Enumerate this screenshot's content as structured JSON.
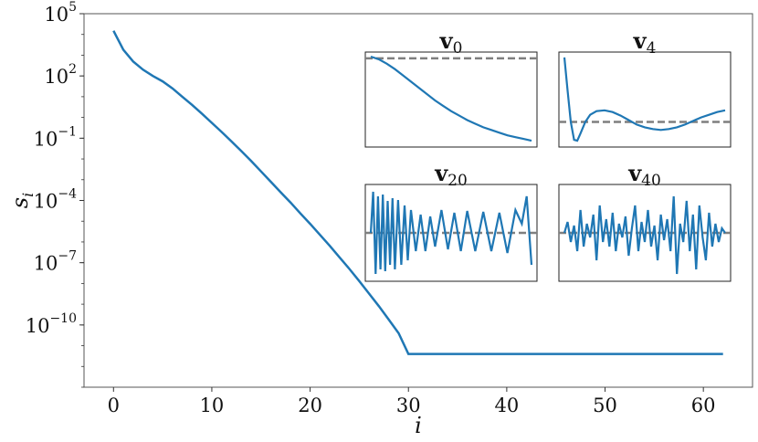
{
  "chart_data": {
    "type": "line",
    "xlabel": "i",
    "ylabel": "s_i",
    "y_scale": "log",
    "xlim": [
      -3,
      65
    ],
    "ylim": [
      1e-13,
      100000
    ],
    "x_ticks": [
      0,
      10,
      20,
      30,
      40,
      50,
      60
    ],
    "y_ticks": [
      {
        "value": 100000,
        "base": "10",
        "exp": "5"
      },
      {
        "value": 100,
        "base": "10",
        "exp": "2"
      },
      {
        "value": 0.1,
        "base": "10",
        "exp": "−1"
      },
      {
        "value": 0.0001,
        "base": "10",
        "exp": "−4"
      },
      {
        "value": 1e-07,
        "base": "10",
        "exp": "−7"
      },
      {
        "value": 1e-10,
        "base": "10",
        "exp": "−10"
      }
    ],
    "color": "#1f77b4",
    "grid": false,
    "series": [
      {
        "x": [
          0,
          1,
          2,
          3,
          4,
          5,
          6,
          7,
          8,
          9,
          10,
          11,
          12,
          13,
          14,
          15,
          16,
          17,
          18,
          19,
          20,
          21,
          22,
          23,
          24,
          25,
          26,
          27,
          28,
          29,
          30,
          31,
          32,
          33,
          34,
          35,
          36,
          37,
          38,
          39,
          40,
          41,
          42,
          43,
          44,
          45,
          46,
          47,
          48,
          49,
          50,
          51,
          52,
          53,
          54,
          55,
          56,
          57,
          58,
          59,
          60,
          61,
          62
        ],
        "y": [
          15000,
          1800,
          500,
          200,
          100,
          55,
          25,
          10,
          4,
          1.5,
          0.55,
          0.2,
          0.07,
          0.024,
          0.008,
          0.0025,
          0.0008,
          0.00025,
          8e-05,
          2.4e-05,
          7.5e-06,
          2.2e-06,
          6.5e-07,
          1.8e-07,
          5e-08,
          1.3e-08,
          3.2e-09,
          8e-10,
          1.8e-10,
          4e-11,
          4e-12,
          4e-12,
          4e-12,
          4e-12,
          4e-12,
          4e-12,
          4e-12,
          4e-12,
          4e-12,
          4e-12,
          4e-12,
          4e-12,
          4e-12,
          4e-12,
          4e-12,
          4e-12,
          4e-12,
          4e-12,
          4e-12,
          4e-12,
          4e-12,
          4e-12,
          4e-12,
          4e-12,
          4e-12,
          4e-12,
          4e-12,
          4e-12,
          4e-12,
          4e-12,
          4e-12,
          4e-12,
          4e-12
        ]
      }
    ],
    "insets": [
      {
        "title_base": "v",
        "title_sub": "0",
        "reference": "constant",
        "x": [
          0,
          0.05,
          0.1,
          0.15,
          0.2,
          0.25,
          0.3,
          0.35,
          0.4,
          0.45,
          0.5,
          0.55,
          0.6,
          0.65,
          0.7,
          0.75,
          0.8,
          0.85,
          0.9,
          0.95,
          1
        ],
        "y": [
          0.98,
          0.95,
          0.9,
          0.84,
          0.77,
          0.7,
          0.63,
          0.56,
          0.49,
          0.43,
          0.37,
          0.32,
          0.27,
          0.23,
          0.19,
          0.16,
          0.13,
          0.1,
          0.08,
          0.06,
          0.04
        ]
      },
      {
        "title_base": "v",
        "title_sub": "4",
        "reference": "constant",
        "x": [
          0,
          0.02,
          0.04,
          0.06,
          0.08,
          0.1,
          0.13,
          0.16,
          0.2,
          0.25,
          0.3,
          0.35,
          0.4,
          0.45,
          0.5,
          0.55,
          0.6,
          0.65,
          0.7,
          0.75,
          0.8,
          0.85,
          0.9,
          0.95,
          1
        ],
        "y": [
          0.97,
          0.6,
          0.25,
          0.05,
          0.04,
          0.12,
          0.25,
          0.33,
          0.37,
          0.38,
          0.36,
          0.32,
          0.27,
          0.22,
          0.19,
          0.17,
          0.16,
          0.17,
          0.19,
          0.22,
          0.26,
          0.3,
          0.33,
          0.36,
          0.38
        ]
      },
      {
        "title_base": "v",
        "title_sub": "20",
        "reference": "constant",
        "x": [
          0,
          0.015,
          0.03,
          0.045,
          0.06,
          0.075,
          0.09,
          0.105,
          0.12,
          0.135,
          0.15,
          0.17,
          0.19,
          0.21,
          0.23,
          0.25,
          0.28,
          0.31,
          0.34,
          0.37,
          0.4,
          0.44,
          0.48,
          0.52,
          0.56,
          0.6,
          0.65,
          0.7,
          0.75,
          0.8,
          0.85,
          0.9,
          0.94,
          0.97,
          1
        ],
        "y": [
          0.5,
          0.95,
          0.05,
          0.9,
          0.1,
          0.92,
          0.08,
          0.85,
          0.15,
          0.88,
          0.1,
          0.86,
          0.15,
          0.8,
          0.2,
          0.75,
          0.3,
          0.7,
          0.3,
          0.68,
          0.35,
          0.75,
          0.32,
          0.72,
          0.3,
          0.74,
          0.3,
          0.73,
          0.3,
          0.72,
          0.28,
          0.75,
          0.6,
          0.9,
          0.15
        ]
      },
      {
        "title_base": "v",
        "title_sub": "40",
        "reference": "constant",
        "x": [
          0,
          0.02,
          0.04,
          0.06,
          0.08,
          0.1,
          0.12,
          0.14,
          0.16,
          0.18,
          0.2,
          0.22,
          0.24,
          0.26,
          0.28,
          0.3,
          0.32,
          0.34,
          0.36,
          0.38,
          0.4,
          0.42,
          0.44,
          0.46,
          0.48,
          0.5,
          0.52,
          0.54,
          0.56,
          0.58,
          0.6,
          0.62,
          0.64,
          0.66,
          0.68,
          0.7,
          0.72,
          0.74,
          0.76,
          0.78,
          0.8,
          0.82,
          0.84,
          0.86,
          0.88,
          0.9,
          0.92,
          0.94,
          0.96,
          0.98,
          1
        ],
        "y": [
          0.5,
          0.62,
          0.4,
          0.58,
          0.3,
          0.75,
          0.35,
          0.6,
          0.45,
          0.7,
          0.2,
          0.8,
          0.4,
          0.65,
          0.35,
          0.72,
          0.3,
          0.6,
          0.45,
          0.68,
          0.25,
          0.55,
          0.8,
          0.3,
          0.62,
          0.4,
          0.75,
          0.35,
          0.58,
          0.2,
          0.7,
          0.42,
          0.65,
          0.3,
          0.9,
          0.05,
          0.6,
          0.4,
          0.85,
          0.3,
          0.7,
          0.1,
          0.8,
          0.45,
          0.2,
          0.72,
          0.35,
          0.6,
          0.4,
          0.55,
          0.5
        ]
      }
    ]
  }
}
